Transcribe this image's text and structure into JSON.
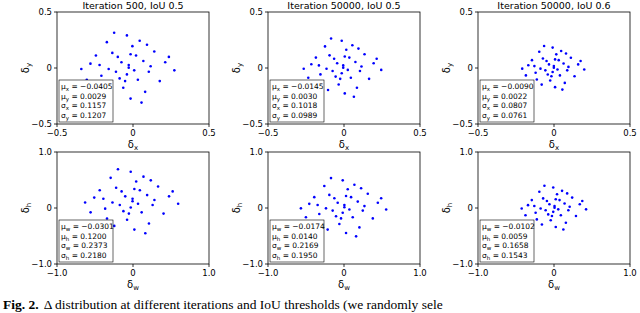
{
  "chart_data": [
    {
      "type": "scatter",
      "title": "Iteration 500, IoU 0.5",
      "x_label": "δx",
      "y_label": "δy",
      "color": "#0000ff",
      "marker": "dot",
      "xlim": [
        -0.5,
        0.5
      ],
      "ylim": [
        -0.5,
        0.5
      ],
      "xticks": [
        {
          "value": -0.5,
          "label": "−0.5"
        },
        0,
        0.5
      ],
      "yticks": [
        {
          "value": -0.5,
          "label": "−0.5"
        },
        0,
        0.5
      ],
      "annotations": [
        "μx = −0.0405",
        "μy = 0.0029",
        "σx = 0.1157",
        "σy = 0.1207"
      ],
      "x": [
        -0.028,
        -0.1,
        0.104,
        -0.208,
        -0.004,
        -0.064,
        0.212,
        -0.28,
        0.032,
        -0.136,
        0.14,
        -0.196,
        -0.04,
        -0.016,
        0.272,
        -0.34,
        0.068,
        -0.112,
        0.08,
        -0.172,
        0.008,
        -0.076,
        0.176,
        -0.244,
        0.044,
        -0.148,
        0.02,
        -0.088,
        0.116,
        -0.22,
        -0.04,
        -0.016,
        -0.304,
        0.236,
        -0.052,
        0.092,
        -0.124,
        0.056,
        -0.16,
        -0.028
      ],
      "values": [
        0.027,
        0.099,
        -0.033,
        -0.069,
        0.195,
        -0.177,
        0.051,
        0.039,
        -0.105,
        0.135,
        0.147,
        -0.165,
        0.291,
        -0.273,
        -0.021,
        -0.009,
        0.063,
        -0.033,
        -0.213,
        0.231,
        -0.021,
        0.051,
        -0.117,
        0.111,
        0.243,
        -0.237,
        0.111,
        -0.093,
        0.015,
        0.027,
        -0.057,
        0.123,
        -0.105,
        0.099,
        -0.117,
        0.207,
        0.315,
        -0.309,
        -0.009,
        0.003
      ]
    },
    {
      "type": "scatter",
      "title": "Iteration 50000, IoU 0.5",
      "x_label": "δx",
      "y_label": "δy",
      "color": "#0000ff",
      "marker": "dot",
      "xlim": [
        -0.5,
        0.5
      ],
      "ylim": [
        -0.5,
        0.5
      ],
      "xticks": [
        {
          "value": -0.5,
          "label": "−0.5"
        },
        0,
        0.5
      ],
      "yticks": [
        {
          "value": -0.5,
          "label": "−0.5"
        },
        0,
        0.5
      ],
      "annotations": [
        "μx = −0.0145",
        "μy = 0.0030",
        "σx = 0.1018",
        "σy = 0.0989"
      ],
      "x": [
        -0.005,
        -0.065,
        0.105,
        -0.155,
        0.015,
        -0.035,
        0.195,
        -0.215,
        0.045,
        -0.095,
        0.135,
        -0.145,
        -0.015,
        0.005,
        0.245,
        -0.265,
        0.075,
        -0.075,
        0.085,
        -0.125,
        0.025,
        -0.045,
        0.165,
        -0.185,
        0.055,
        -0.105,
        0.035,
        -0.055,
        0.115,
        -0.165,
        -0.015,
        0.005,
        -0.235,
        0.215,
        -0.025,
        0.095,
        -0.085,
        0.065,
        -0.115,
        -0.005
      ],
      "values": [
        0.023,
        0.083,
        -0.027,
        -0.057,
        0.163,
        -0.147,
        0.043,
        0.033,
        -0.087,
        0.113,
        0.123,
        -0.137,
        0.243,
        -0.227,
        -0.017,
        -0.007,
        0.053,
        -0.027,
        -0.177,
        0.193,
        -0.017,
        0.043,
        -0.097,
        0.093,
        0.203,
        -0.197,
        0.093,
        -0.077,
        0.013,
        0.023,
        -0.047,
        0.103,
        -0.087,
        0.083,
        -0.097,
        0.173,
        0.263,
        -0.257,
        -0.007,
        0.003
      ]
    },
    {
      "type": "scatter",
      "title": "Iteration 50000, IoU 0.6",
      "x_label": "δx",
      "y_label": "δy",
      "color": "#0000ff",
      "marker": "dot",
      "xlim": [
        -0.5,
        0.5
      ],
      "ylim": [
        -0.5,
        0.5
      ],
      "xticks": [
        {
          "value": -0.5,
          "label": "−0.5"
        },
        0,
        0.5
      ],
      "yticks": [
        {
          "value": -0.5,
          "label": "−0.5"
        },
        0,
        0.5
      ],
      "annotations": [
        "μx = −0.0090",
        "μy = 0.0022",
        "σx = 0.0807",
        "σy = 0.0761"
      ],
      "x": [
        -0.001,
        -0.049,
        0.087,
        -0.121,
        0.015,
        -0.025,
        0.159,
        -0.169,
        0.039,
        -0.073,
        0.111,
        -0.113,
        -0.009,
        0.007,
        0.199,
        -0.209,
        0.063,
        -0.057,
        0.071,
        -0.097,
        0.023,
        -0.033,
        0.135,
        -0.145,
        0.047,
        -0.081,
        0.031,
        -0.041,
        0.095,
        -0.129,
        -0.009,
        0.007,
        -0.185,
        0.175,
        -0.017,
        0.079,
        -0.065,
        0.055,
        -0.089,
        -0.001
      ],
      "values": [
        0.017,
        0.062,
        -0.021,
        -0.043,
        0.122,
        -0.111,
        0.032,
        0.025,
        -0.066,
        0.085,
        0.092,
        -0.103,
        0.182,
        -0.171,
        -0.013,
        -0.006,
        0.04,
        -0.021,
        -0.133,
        0.145,
        -0.013,
        0.032,
        -0.073,
        0.07,
        0.152,
        -0.148,
        0.07,
        -0.058,
        0.01,
        0.017,
        -0.036,
        0.077,
        -0.066,
        0.062,
        -0.073,
        0.13,
        0.197,
        -0.193,
        -0.006,
        0.002
      ]
    },
    {
      "type": "scatter",
      "x_label": "δw",
      "y_label": "δh",
      "color": "#0000ff",
      "marker": "dot",
      "xlim": [
        -1,
        1
      ],
      "ylim": [
        -1,
        1
      ],
      "xticks": [
        {
          "value": -1,
          "label": "−1.0"
        },
        0,
        {
          "value": 1,
          "label": "1.0"
        }
      ],
      "yticks": [
        {
          "value": -1,
          "label": "−1.0"
        },
        0,
        {
          "value": 1,
          "label": "1.0"
        }
      ],
      "annotations": [
        "μw = −0.0301",
        "μh = 0.1200",
        "σw = 0.2373",
        "σh = 0.2180"
      ],
      "x": [
        -0.006,
        -0.15,
        0.258,
        -0.366,
        0.042,
        -0.078,
        0.474,
        -0.51,
        0.114,
        -0.222,
        0.33,
        -0.342,
        -0.03,
        0.018,
        0.594,
        -0.63,
        0.186,
        -0.174,
        0.21,
        -0.294,
        0.066,
        -0.102,
        0.402,
        -0.438,
        0.138,
        -0.246,
        0.09,
        -0.126,
        0.282,
        -0.39,
        -0.03,
        0.018,
        -0.558,
        0.522,
        -0.054,
        0.234,
        -0.198,
        0.162,
        -0.27,
        -0.006
      ],
      "values": [
        0.164,
        0.296,
        0.054,
        -0.012,
        0.472,
        -0.21,
        0.208,
        0.186,
        -0.078,
        0.362,
        0.384,
        -0.188,
        0.648,
        -0.386,
        0.076,
        0.098,
        0.23,
        0.054,
        -0.276,
        0.538,
        0.076,
        0.208,
        -0.1,
        0.318,
        0.56,
        -0.32,
        0.318,
        -0.056,
        0.142,
        0.164,
        0.01,
        0.34,
        -0.078,
        0.296,
        -0.1,
        0.494,
        0.692,
        -0.452,
        0.098,
        0.12
      ]
    },
    {
      "type": "scatter",
      "x_label": "δw",
      "y_label": "δh",
      "color": "#0000ff",
      "marker": "dot",
      "xlim": [
        -1,
        1
      ],
      "ylim": [
        -1,
        1
      ],
      "xticks": [
        {
          "value": -1,
          "label": "−1.0"
        },
        0,
        {
          "value": 1,
          "label": "1.0"
        }
      ],
      "yticks": [
        {
          "value": -1,
          "label": "−1.0"
        },
        0,
        {
          "value": 1,
          "label": "1.0"
        }
      ],
      "annotations": [
        "μw = −0.0174",
        "μh = 0.0140",
        "σw = 0.2169",
        "σh = 0.1950"
      ],
      "x": [
        0.005,
        -0.127,
        0.247,
        -0.325,
        0.049,
        -0.061,
        0.445,
        -0.457,
        0.115,
        -0.193,
        0.313,
        -0.303,
        -0.017,
        0.027,
        0.555,
        -0.567,
        0.181,
        -0.149,
        0.203,
        -0.259,
        0.071,
        -0.083,
        0.379,
        -0.391,
        0.137,
        -0.215,
        0.093,
        -0.105,
        0.269,
        -0.347,
        -0.017,
        0.027,
        -0.501,
        0.489,
        -0.039,
        0.225,
        -0.171,
        0.159,
        -0.237,
        0.005
      ],
      "values": [
        0.054,
        0.174,
        -0.046,
        -0.106,
        0.334,
        -0.286,
        0.094,
        0.074,
        -0.166,
        0.234,
        0.254,
        -0.266,
        0.494,
        -0.446,
        -0.026,
        -0.006,
        0.114,
        -0.046,
        -0.346,
        0.394,
        -0.026,
        0.094,
        -0.186,
        0.194,
        0.414,
        -0.386,
        0.194,
        -0.146,
        0.034,
        0.054,
        -0.086,
        0.214,
        -0.166,
        0.174,
        -0.186,
        0.354,
        0.534,
        -0.506,
        -0.006,
        0.014
      ]
    },
    {
      "type": "scatter",
      "x_label": "δw",
      "y_label": "δh",
      "color": "#0000ff",
      "marker": "dot",
      "xlim": [
        -1,
        1
      ],
      "ylim": [
        -1,
        1
      ],
      "xticks": [
        {
          "value": -1,
          "label": "−1.0"
        },
        0,
        {
          "value": 1,
          "label": "1.0"
        }
      ],
      "yticks": [
        {
          "value": -1,
          "label": "−1.0"
        },
        0,
        {
          "value": 1,
          "label": "1.0"
        }
      ],
      "annotations": [
        "μw = −0.0102",
        "μh = 0.0059",
        "σw = 0.1658",
        "σh = 0.1543"
      ],
      "x": [
        0.007,
        -0.093,
        0.189,
        -0.242,
        0.04,
        -0.043,
        0.339,
        -0.342,
        0.09,
        -0.143,
        0.239,
        -0.226,
        -0.01,
        0.023,
        0.422,
        -0.425,
        0.139,
        -0.11,
        0.156,
        -0.193,
        0.056,
        -0.06,
        0.289,
        -0.292,
        0.106,
        -0.159,
        0.073,
        -0.076,
        0.206,
        -0.259,
        -0.01,
        0.023,
        -0.375,
        0.372,
        -0.027,
        0.173,
        -0.126,
        0.123,
        -0.176,
        0.007
      ],
      "values": [
        0.036,
        0.126,
        -0.039,
        -0.084,
        0.246,
        -0.219,
        0.066,
        0.051,
        -0.129,
        0.171,
        0.186,
        -0.204,
        0.366,
        -0.339,
        -0.024,
        -0.009,
        0.081,
        -0.039,
        -0.264,
        0.291,
        -0.024,
        0.066,
        -0.144,
        0.141,
        0.306,
        -0.294,
        0.141,
        -0.114,
        0.021,
        0.036,
        -0.069,
        0.156,
        -0.129,
        0.126,
        -0.144,
        0.261,
        0.396,
        -0.384,
        -0.009,
        0.006
      ]
    }
  ],
  "caption": {
    "label": "Fig. 2.",
    "text": "Δ distribution at different iterations and IoU thresholds (we randomly sele"
  }
}
